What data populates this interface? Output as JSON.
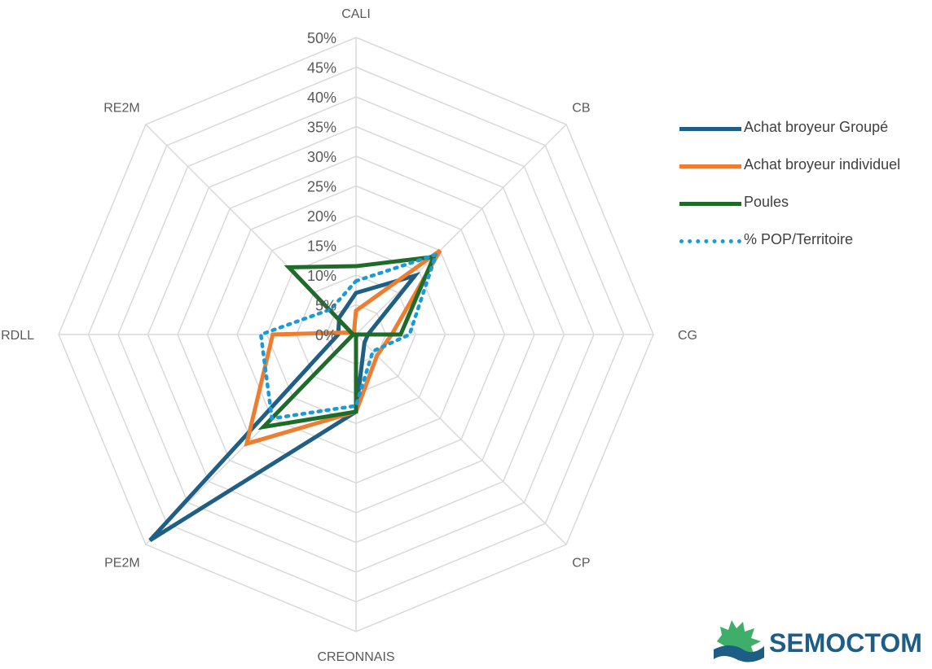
{
  "chart_data": {
    "type": "radar",
    "title": "",
    "categories": [
      "CALI",
      "CB",
      "CG",
      "CP",
      "CREONNAIS",
      "PE2M",
      "RDLL",
      "RE2M"
    ],
    "radial_ticks": [
      "0%",
      "5%",
      "10%",
      "15%",
      "20%",
      "25%",
      "30%",
      "35%",
      "40%",
      "45%",
      "50%"
    ],
    "rlim": [
      0,
      50
    ],
    "grid": true,
    "legend_position": "right",
    "series": [
      {
        "name": "Achat broyeur Groupé",
        "color": "#1f5f85",
        "dash": "solid",
        "values": [
          7,
          14,
          2,
          2,
          13,
          49,
          3,
          4
        ]
      },
      {
        "name": "Achat broyeur individuel",
        "color": "#ed7d31",
        "dash": "solid",
        "values": [
          4,
          20,
          6,
          5,
          13,
          26,
          14,
          0.5
        ]
      },
      {
        "name": "Poules",
        "color": "#1e6b2a",
        "dash": "solid",
        "values": [
          11.5,
          18.5,
          7.5,
          0,
          13,
          22,
          0.5,
          16
        ]
      },
      {
        "name": "% POP/Territoire",
        "color": "#1a9ad6",
        "dash": "dotted",
        "values": [
          9,
          19,
          9,
          4,
          12,
          20,
          16,
          6
        ]
      }
    ]
  },
  "logo": {
    "text": "SEMOCTOM"
  }
}
